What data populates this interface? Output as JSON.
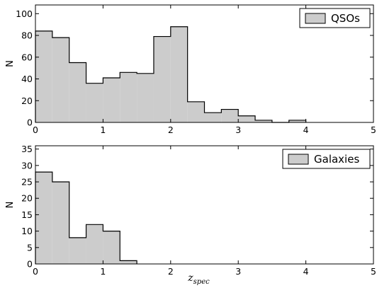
{
  "chart_data": [
    {
      "type": "bar",
      "subtype": "step-filled-histogram",
      "legend": "QSOs",
      "legend_position": "top-right",
      "ylabel": "N",
      "xlabel": "",
      "xlim": [
        0,
        5
      ],
      "ylim": [
        0,
        108
      ],
      "xticks": [
        "0",
        "1",
        "2",
        "3",
        "4",
        "5"
      ],
      "yticks": [
        "0",
        "20",
        "40",
        "60",
        "80",
        "100"
      ],
      "bin_width": 0.25,
      "bin_edges": [
        0,
        0.25,
        0.5,
        0.75,
        1.0,
        1.25,
        1.5,
        1.75,
        2.0,
        2.25,
        2.5,
        2.75,
        3.0,
        3.25,
        3.5,
        3.75,
        4.0
      ],
      "values": [
        84,
        78,
        55,
        36,
        41,
        46,
        45,
        79,
        88,
        19,
        9,
        12,
        6,
        2,
        0,
        2
      ],
      "fill_color": "#cccccc",
      "grid": false
    },
    {
      "type": "bar",
      "subtype": "step-filled-histogram",
      "legend": "Galaxies",
      "legend_position": "top-right",
      "ylabel": "N",
      "xlabel": "z",
      "xlabel_subscript": "spec",
      "xlim": [
        0,
        5
      ],
      "ylim": [
        0,
        36
      ],
      "xticks": [
        "0",
        "1",
        "2",
        "3",
        "4",
        "5"
      ],
      "yticks": [
        "0",
        "5",
        "10",
        "15",
        "20",
        "25",
        "30",
        "35"
      ],
      "bin_width": 0.25,
      "bin_edges": [
        0,
        0.25,
        0.5,
        0.75,
        1.0,
        1.25,
        1.5
      ],
      "values": [
        28,
        25,
        8,
        12,
        10,
        1
      ],
      "fill_color": "#cccccc",
      "grid": false
    }
  ]
}
